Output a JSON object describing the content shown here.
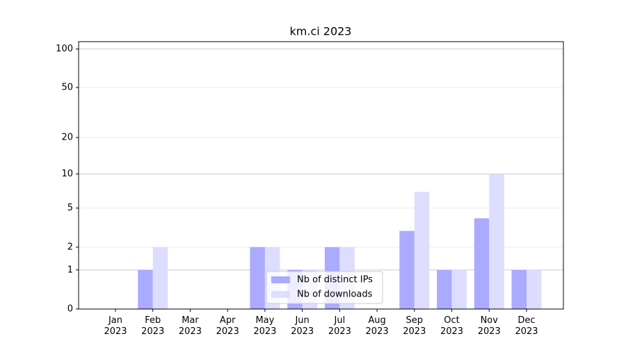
{
  "chart_data": {
    "type": "bar",
    "title": "km.ci 2023",
    "categories": [
      "Jan 2023",
      "Feb 2023",
      "Mar 2023",
      "Apr 2023",
      "May 2023",
      "Jun 2023",
      "Jul 2023",
      "Aug 2023",
      "Sep 2023",
      "Oct 2023",
      "Nov 2023",
      "Dec 2023"
    ],
    "series": [
      {
        "name": "Nb of distinct IPs",
        "color": "#aaaaff",
        "values": [
          0,
          1,
          0,
          0,
          2,
          1,
          2,
          0,
          3,
          1,
          4,
          1
        ]
      },
      {
        "name": "Nb of downloads",
        "color": "#ddddff",
        "values": [
          0,
          2,
          0,
          0,
          2,
          1,
          2,
          0,
          7,
          1,
          10,
          1
        ]
      }
    ],
    "yscale": "log1p",
    "ylim": [
      0,
      114
    ],
    "yticks": [
      0,
      1,
      2,
      5,
      10,
      20,
      50,
      100
    ],
    "grid": true,
    "legend": "lower center"
  }
}
